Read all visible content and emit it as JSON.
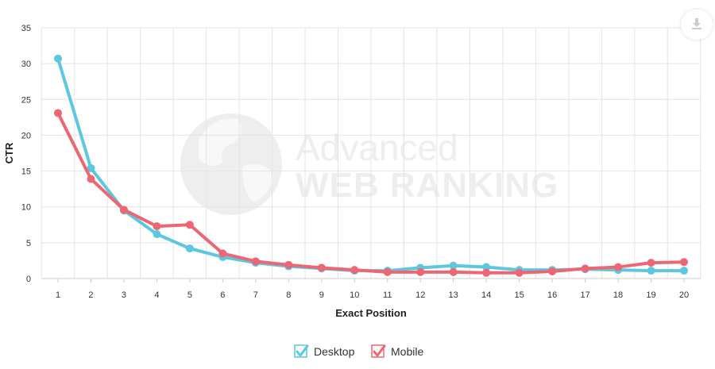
{
  "chart_data": {
    "type": "line",
    "title": "",
    "xlabel": "Exact Position",
    "ylabel": "CTR",
    "categories": [
      "1",
      "2",
      "3",
      "4",
      "5",
      "6",
      "7",
      "8",
      "9",
      "10",
      "11",
      "12",
      "13",
      "14",
      "15",
      "16",
      "17",
      "18",
      "19",
      "20"
    ],
    "ylim": [
      0,
      35
    ],
    "yticks": [
      0,
      5,
      10,
      15,
      20,
      25,
      30,
      35
    ],
    "grid": true,
    "legend_position": "bottom-center",
    "series": [
      {
        "name": "Desktop",
        "color": "#5bc8df",
        "values": [
          30.7,
          15.4,
          9.5,
          6.2,
          4.2,
          3.0,
          2.2,
          1.7,
          1.4,
          1.1,
          1.1,
          1.5,
          1.8,
          1.6,
          1.2,
          1.2,
          1.3,
          1.2,
          1.1,
          1.1
        ]
      },
      {
        "name": "Mobile",
        "color": "#ef6673",
        "values": [
          23.1,
          13.9,
          9.6,
          7.3,
          7.5,
          3.5,
          2.4,
          1.9,
          1.5,
          1.2,
          0.9,
          0.9,
          0.9,
          0.8,
          0.8,
          1.0,
          1.4,
          1.6,
          2.2,
          2.3
        ]
      }
    ]
  },
  "watermark": {
    "line1": "Advanced",
    "line2": "WEB RANKING",
    "icon": "globe-icon"
  },
  "toolbar": {
    "download_icon": "download-icon"
  }
}
